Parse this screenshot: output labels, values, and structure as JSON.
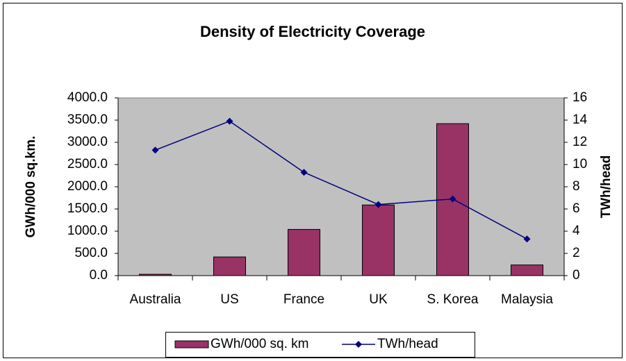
{
  "chart_data": {
    "type": "bar",
    "title": "Density of Electricity Coverage",
    "y_label": "GWh/000 sq.km.",
    "y2_label": "TWh/head",
    "categories": [
      "Australia",
      "US",
      "France",
      "UK",
      "S. Korea",
      "Malaysia"
    ],
    "series": [
      {
        "name": "GWh/000 sq. km",
        "type": "bar",
        "color": "#993366",
        "values": [
          30,
          420,
          1040,
          1590,
          3420,
          240
        ]
      },
      {
        "name": "TWh/head",
        "type": "line",
        "axis": "y2",
        "color": "#000080",
        "values": [
          11.3,
          13.9,
          9.3,
          6.4,
          6.9,
          3.3
        ]
      }
    ],
    "ylim": [
      0,
      4000
    ],
    "yticks": [
      {
        "value": 0,
        "label": "0.0"
      },
      {
        "value": 500,
        "label": "500.0"
      },
      {
        "value": 1000,
        "label": "1000.0"
      },
      {
        "value": 1500,
        "label": "1500.0"
      },
      {
        "value": 2000,
        "label": "2000.0"
      },
      {
        "value": 2500,
        "label": "2500.0"
      },
      {
        "value": 3000,
        "label": "3000.0"
      },
      {
        "value": 3500,
        "label": "3500.0"
      },
      {
        "value": 4000,
        "label": "4000.0"
      }
    ],
    "y2lim": [
      0,
      16
    ],
    "y2ticks": [
      0,
      2,
      4,
      6,
      8,
      10,
      12,
      14,
      16
    ],
    "legend": "bottom"
  }
}
